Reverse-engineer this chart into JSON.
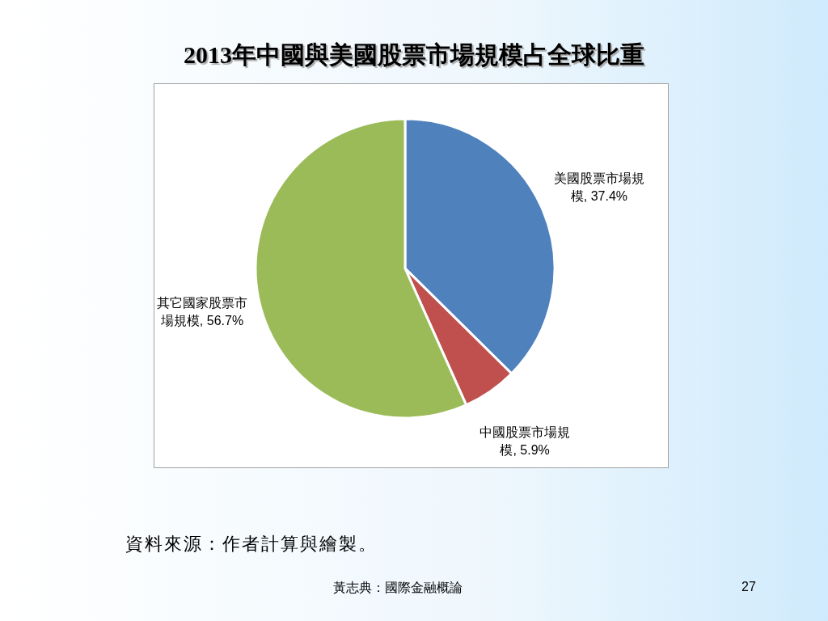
{
  "chart_data": {
    "type": "pie",
    "title": "2013年中國與美國股票市場規模占全球比重",
    "categories": [
      "美國股票市場規模",
      "中國股票市場規模",
      "其它國家股票市場規模"
    ],
    "values": [
      37.4,
      5.9,
      56.7
    ],
    "value_labels": [
      "37.4%",
      "5.9%",
      "56.7%"
    ],
    "colors": [
      "#4f81bd",
      "#c0504d",
      "#9bbb59"
    ],
    "legend": false,
    "annotations": [
      "資料來源：作者計算與繪製。",
      "黃志典：國際金融概論",
      "27"
    ]
  }
}
